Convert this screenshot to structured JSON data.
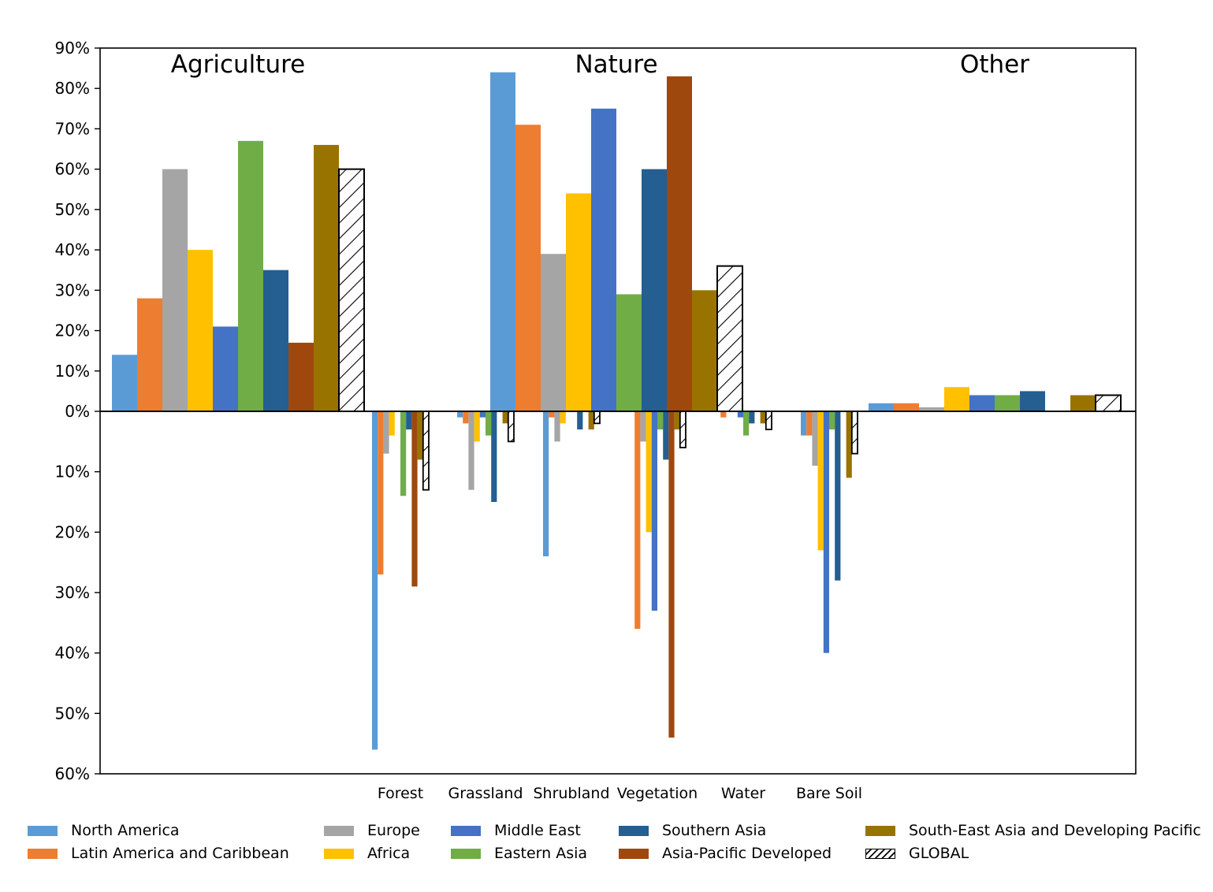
{
  "chart_data": {
    "type": "bar",
    "sections": [
      "Agriculture",
      "Nature",
      "Other"
    ],
    "y_axis": {
      "positive_ticks": [
        "0%",
        "10%",
        "20%",
        "30%",
        "40%",
        "50%",
        "60%",
        "70%",
        "80%",
        "90%"
      ],
      "negative_ticks": [
        "10%",
        "20%",
        "30%",
        "40%",
        "50%",
        "60%"
      ],
      "ylim_positive": [
        0,
        90
      ],
      "ylim_negative": [
        0,
        60
      ]
    },
    "loss_categories": [
      "Forest",
      "Grassland",
      "Shrubland",
      "Vegetation",
      "Water",
      "Bare Soil"
    ],
    "series": [
      {
        "name": "North America",
        "color": "#5b9bd5",
        "gains": {
          "Agriculture": 14,
          "Nature": 84,
          "Other": 2
        },
        "losses": {
          "Forest": 56,
          "Grassland": 1,
          "Shrubland": 24,
          "Vegetation": 0,
          "Water": 0,
          "Bare Soil": 4
        }
      },
      {
        "name": "Latin America and Caribbean",
        "color": "#ed7d31",
        "gains": {
          "Agriculture": 28,
          "Nature": 71,
          "Other": 2
        },
        "losses": {
          "Forest": 27,
          "Grassland": 2,
          "Shrubland": 1,
          "Vegetation": 36,
          "Water": 1,
          "Bare Soil": 4
        }
      },
      {
        "name": "Europe",
        "color": "#a5a5a5",
        "gains": {
          "Agriculture": 60,
          "Nature": 39,
          "Other": 1
        },
        "losses": {
          "Forest": 7,
          "Grassland": 13,
          "Shrubland": 5,
          "Vegetation": 5,
          "Water": 0,
          "Bare Soil": 9
        }
      },
      {
        "name": "Africa",
        "color": "#ffc000",
        "gains": {
          "Agriculture": 40,
          "Nature": 54,
          "Other": 6
        },
        "losses": {
          "Forest": 4,
          "Grassland": 5,
          "Shrubland": 2,
          "Vegetation": 20,
          "Water": 0,
          "Bare Soil": 23
        }
      },
      {
        "name": "Middle East",
        "color": "#4472c4",
        "gains": {
          "Agriculture": 21,
          "Nature": 75,
          "Other": 4
        },
        "losses": {
          "Forest": 0,
          "Grassland": 1,
          "Shrubland": 0,
          "Vegetation": 33,
          "Water": 1,
          "Bare Soil": 40
        }
      },
      {
        "name": "Eastern Asia",
        "color": "#70ad47",
        "gains": {
          "Agriculture": 67,
          "Nature": 29,
          "Other": 4
        },
        "losses": {
          "Forest": 14,
          "Grassland": 4,
          "Shrubland": 0,
          "Vegetation": 3,
          "Water": 4,
          "Bare Soil": 3
        }
      },
      {
        "name": "Southern Asia",
        "color": "#255e91",
        "gains": {
          "Agriculture": 35,
          "Nature": 60,
          "Other": 5
        },
        "losses": {
          "Forest": 3,
          "Grassland": 15,
          "Shrubland": 3,
          "Vegetation": 8,
          "Water": 2,
          "Bare Soil": 28
        }
      },
      {
        "name": "Asia-Pacific Developed",
        "color": "#9e480e",
        "gains": {
          "Agriculture": 17,
          "Nature": 83,
          "Other": 0
        },
        "losses": {
          "Forest": 29,
          "Grassland": 0,
          "Shrubland": 0,
          "Vegetation": 54,
          "Water": 0,
          "Bare Soil": 0
        }
      },
      {
        "name": "South-East Asia and Developing Pacific",
        "color": "#997300",
        "gains": {
          "Agriculture": 66,
          "Nature": 30,
          "Other": 4
        },
        "losses": {
          "Forest": 8,
          "Grassland": 2,
          "Shrubland": 3,
          "Vegetation": 3,
          "Water": 2,
          "Bare Soil": 11
        }
      },
      {
        "name": "GLOBAL",
        "color": "#ffffff",
        "pattern": "hatched",
        "gains": {
          "Agriculture": 60,
          "Nature": 36,
          "Other": 4
        },
        "losses": {
          "Forest": 13,
          "Grassland": 5,
          "Shrubland": 2,
          "Vegetation": 6,
          "Water": 3,
          "Bare Soil": 7
        }
      }
    ],
    "legend_placement": "bottom",
    "grid": false
  }
}
